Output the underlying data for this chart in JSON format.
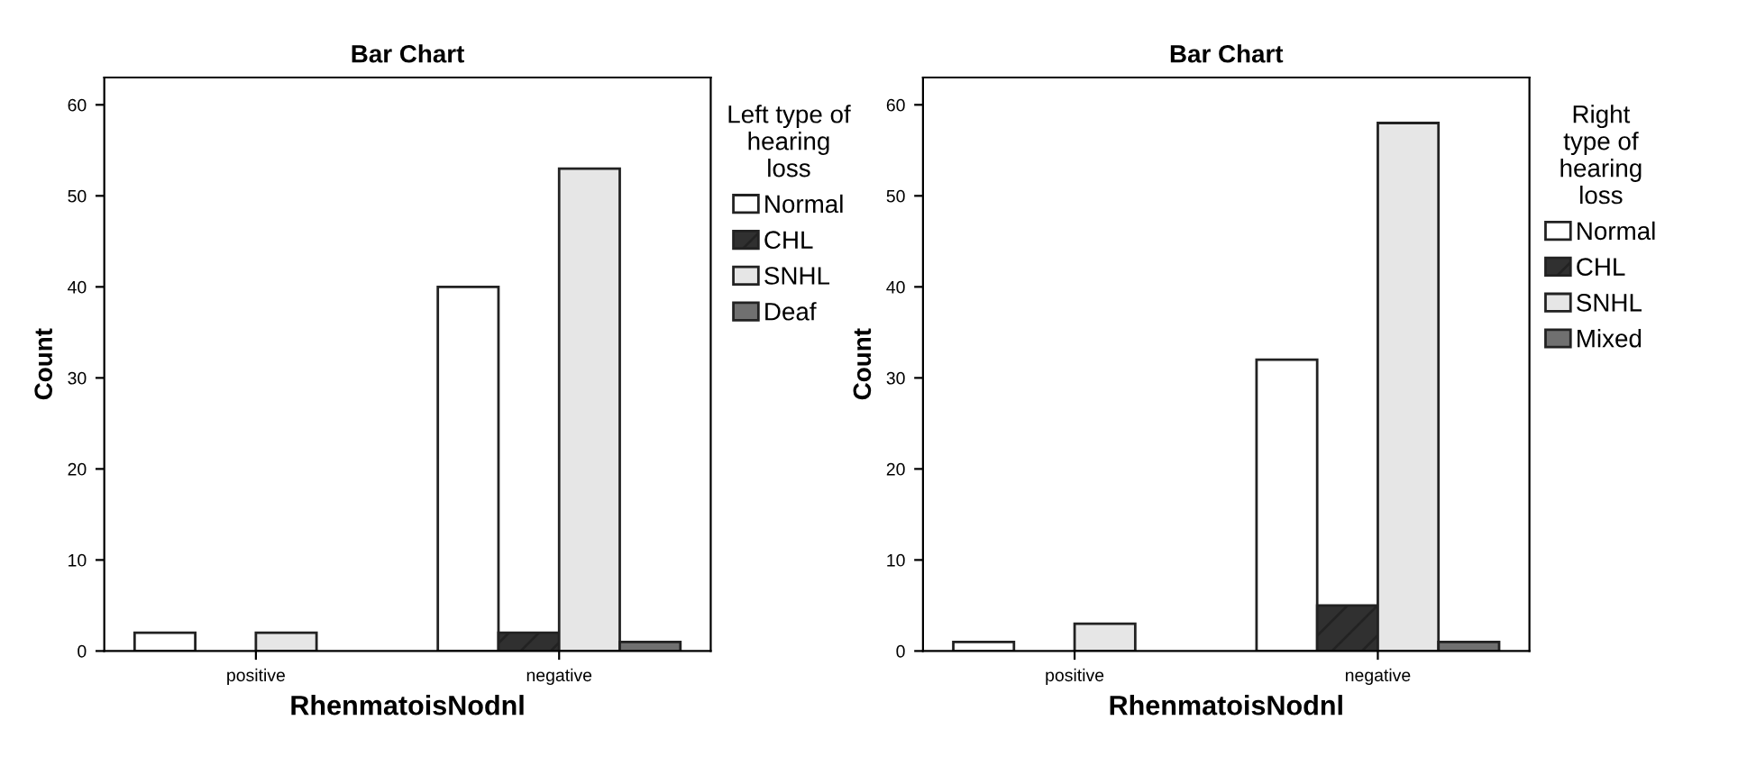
{
  "chart_data": [
    {
      "type": "bar",
      "title": "Bar Chart",
      "xlabel": "RhenmatoisNodnl",
      "ylabel": "Count",
      "legend_title": "Left type of\nhearing\nloss",
      "legend": "right",
      "categories": [
        "positive",
        "negative"
      ],
      "ylim": [
        0,
        63
      ],
      "yticks": [
        0,
        10,
        20,
        30,
        40,
        50,
        60
      ],
      "series": [
        {
          "name": "Normal",
          "color": "#ffffff",
          "values": [
            2,
            40
          ]
        },
        {
          "name": "CHL",
          "color": "#303030",
          "values": [
            null,
            2
          ]
        },
        {
          "name": "SNHL",
          "color": "#e6e6e6",
          "values": [
            2,
            53
          ]
        },
        {
          "name": "Deaf",
          "color": "#707070",
          "values": [
            null,
            1
          ]
        }
      ]
    },
    {
      "type": "bar",
      "title": "Bar Chart",
      "xlabel": "RhenmatoisNodnl",
      "ylabel": "Count",
      "legend_title": "Right\ntype of\nhearing\nloss",
      "legend": "right",
      "categories": [
        "positive",
        "negative"
      ],
      "ylim": [
        0,
        63
      ],
      "yticks": [
        0,
        10,
        20,
        30,
        40,
        50,
        60
      ],
      "series": [
        {
          "name": "Normal",
          "color": "#ffffff",
          "values": [
            1,
            32
          ]
        },
        {
          "name": "CHL",
          "color": "#303030",
          "values": [
            null,
            5
          ]
        },
        {
          "name": "SNHL",
          "color": "#e6e6e6",
          "values": [
            3,
            58
          ]
        },
        {
          "name": "Mixed",
          "color": "#707070",
          "values": [
            null,
            1
          ]
        }
      ]
    }
  ]
}
